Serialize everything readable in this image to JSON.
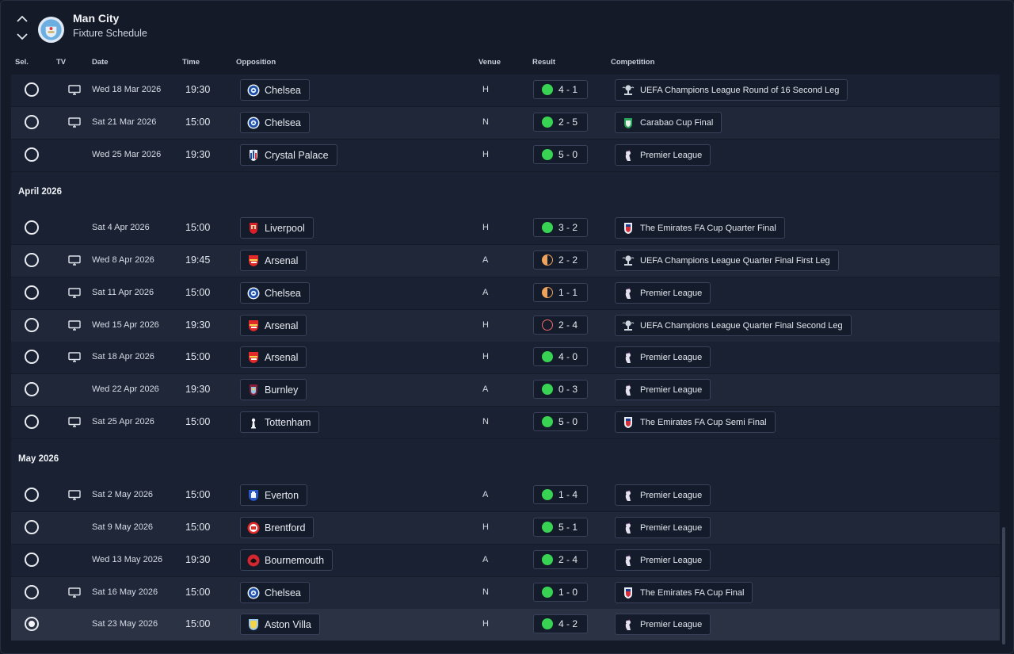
{
  "header": {
    "club": "Man City",
    "subtitle": "Fixture Schedule"
  },
  "columns": {
    "sel": "Sel.",
    "tv": "TV",
    "date": "Date",
    "time": "Time",
    "opposition": "Opposition",
    "venue": "Venue",
    "result": "Result",
    "competition": "Competition"
  },
  "months": {
    "april": "April 2026",
    "may": "May 2026"
  },
  "colors": {
    "win": "#39d353",
    "draw": "#f0a35b",
    "loss": "#f06a6a",
    "background": "#141a28"
  },
  "fixtures": [
    {
      "tv": true,
      "date": "Wed 18 Mar 2026",
      "time": "19:30",
      "opp": "Chelsea",
      "crest": "chelsea",
      "venue": "H",
      "result": "4 - 1",
      "outcome": "W",
      "comp": "UEFA Champions League Round of 16 Second Leg",
      "comp_icon": "ucl"
    },
    {
      "tv": true,
      "date": "Sat 21 Mar 2026",
      "time": "15:00",
      "opp": "Chelsea",
      "crest": "chelsea",
      "venue": "N",
      "result": "2 - 5",
      "outcome": "W",
      "comp": "Carabao Cup Final",
      "comp_icon": "carabao"
    },
    {
      "tv": false,
      "date": "Wed 25 Mar 2026",
      "time": "19:30",
      "opp": "Crystal Palace",
      "crest": "palace",
      "venue": "H",
      "result": "5 - 0",
      "outcome": "W",
      "comp": "Premier League",
      "comp_icon": "pl"
    },
    {
      "tv": false,
      "date": "Sat 4 Apr 2026",
      "time": "15:00",
      "opp": "Liverpool",
      "crest": "liverpool",
      "venue": "H",
      "result": "3 - 2",
      "outcome": "W",
      "comp": "The Emirates FA Cup Quarter Final",
      "comp_icon": "fa"
    },
    {
      "tv": true,
      "date": "Wed 8 Apr 2026",
      "time": "19:45",
      "opp": "Arsenal",
      "crest": "arsenal",
      "venue": "A",
      "result": "2 - 2",
      "outcome": "D",
      "comp": "UEFA Champions League Quarter Final First Leg",
      "comp_icon": "ucl"
    },
    {
      "tv": true,
      "date": "Sat 11 Apr 2026",
      "time": "15:00",
      "opp": "Chelsea",
      "crest": "chelsea",
      "venue": "A",
      "result": "1 - 1",
      "outcome": "D",
      "comp": "Premier League",
      "comp_icon": "pl"
    },
    {
      "tv": true,
      "date": "Wed 15 Apr 2026",
      "time": "19:30",
      "opp": "Arsenal",
      "crest": "arsenal",
      "venue": "H",
      "result": "2 - 4",
      "outcome": "L",
      "comp": "UEFA Champions League Quarter Final Second Leg",
      "comp_icon": "ucl"
    },
    {
      "tv": true,
      "date": "Sat 18 Apr 2026",
      "time": "15:00",
      "opp": "Arsenal",
      "crest": "arsenal",
      "venue": "H",
      "result": "4 - 0",
      "outcome": "W",
      "comp": "Premier League",
      "comp_icon": "pl"
    },
    {
      "tv": false,
      "date": "Wed 22 Apr 2026",
      "time": "19:30",
      "opp": "Burnley",
      "crest": "burnley",
      "venue": "A",
      "result": "0 - 3",
      "outcome": "W",
      "comp": "Premier League",
      "comp_icon": "pl"
    },
    {
      "tv": true,
      "date": "Sat 25 Apr 2026",
      "time": "15:00",
      "opp": "Tottenham",
      "crest": "spurs",
      "venue": "N",
      "result": "5 - 0",
      "outcome": "W",
      "comp": "The Emirates FA Cup Semi Final",
      "comp_icon": "fa"
    },
    {
      "tv": true,
      "date": "Sat 2 May 2026",
      "time": "15:00",
      "opp": "Everton",
      "crest": "everton",
      "venue": "A",
      "result": "1 - 4",
      "outcome": "W",
      "comp": "Premier League",
      "comp_icon": "pl"
    },
    {
      "tv": false,
      "date": "Sat 9 May 2026",
      "time": "15:00",
      "opp": "Brentford",
      "crest": "brentford",
      "venue": "H",
      "result": "5 - 1",
      "outcome": "W",
      "comp": "Premier League",
      "comp_icon": "pl"
    },
    {
      "tv": false,
      "date": "Wed 13 May 2026",
      "time": "19:30",
      "opp": "Bournemouth",
      "crest": "bournemouth",
      "venue": "A",
      "result": "2 - 4",
      "outcome": "W",
      "comp": "Premier League",
      "comp_icon": "pl"
    },
    {
      "tv": true,
      "date": "Sat 16 May 2026",
      "time": "15:00",
      "opp": "Chelsea",
      "crest": "chelsea",
      "venue": "N",
      "result": "1 - 0",
      "outcome": "W",
      "comp": "The Emirates FA Cup Final",
      "comp_icon": "fa"
    },
    {
      "tv": false,
      "date": "Sat 23 May 2026",
      "time": "15:00",
      "opp": "Aston Villa",
      "crest": "villa",
      "venue": "H",
      "result": "4 - 2",
      "outcome": "W",
      "comp": "Premier League",
      "comp_icon": "pl",
      "selected": true
    }
  ]
}
